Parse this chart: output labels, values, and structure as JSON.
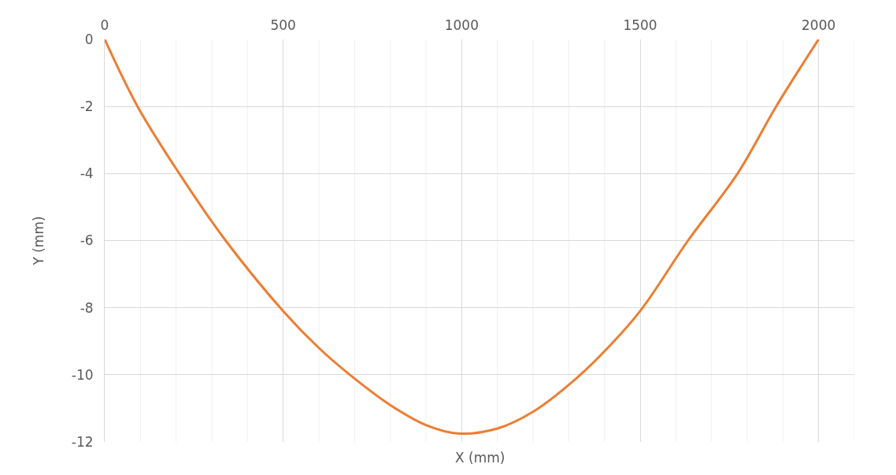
{
  "chart_data": {
    "type": "line",
    "xlabel": "X (mm)",
    "ylabel": "Y (mm)",
    "x": [
      0,
      92,
      209,
      339,
      500,
      600,
      687,
      800,
      900,
      990,
      1100,
      1200,
      1300,
      1400,
      1500,
      1634,
      1773,
      1881,
      2000
    ],
    "series": [
      {
        "color": "#ed7d31",
        "values": [
          0,
          -2,
          -4,
          -6,
          -8.1,
          -9.2,
          -10,
          -10.9,
          -11.5,
          -11.75,
          -11.6,
          -11.1,
          -10.3,
          -9.3,
          -8.1,
          -6,
          -4,
          -2,
          0
        ]
      }
    ],
    "xlim": [
      0,
      2100
    ],
    "xticks": [
      0,
      500,
      1000,
      1500,
      2000
    ],
    "ylim": [
      -12,
      0
    ],
    "yticks": [
      0,
      -2,
      -4,
      -6,
      -8,
      -10,
      -12
    ],
    "grid": true,
    "marker": "none",
    "line_style": "solid"
  }
}
